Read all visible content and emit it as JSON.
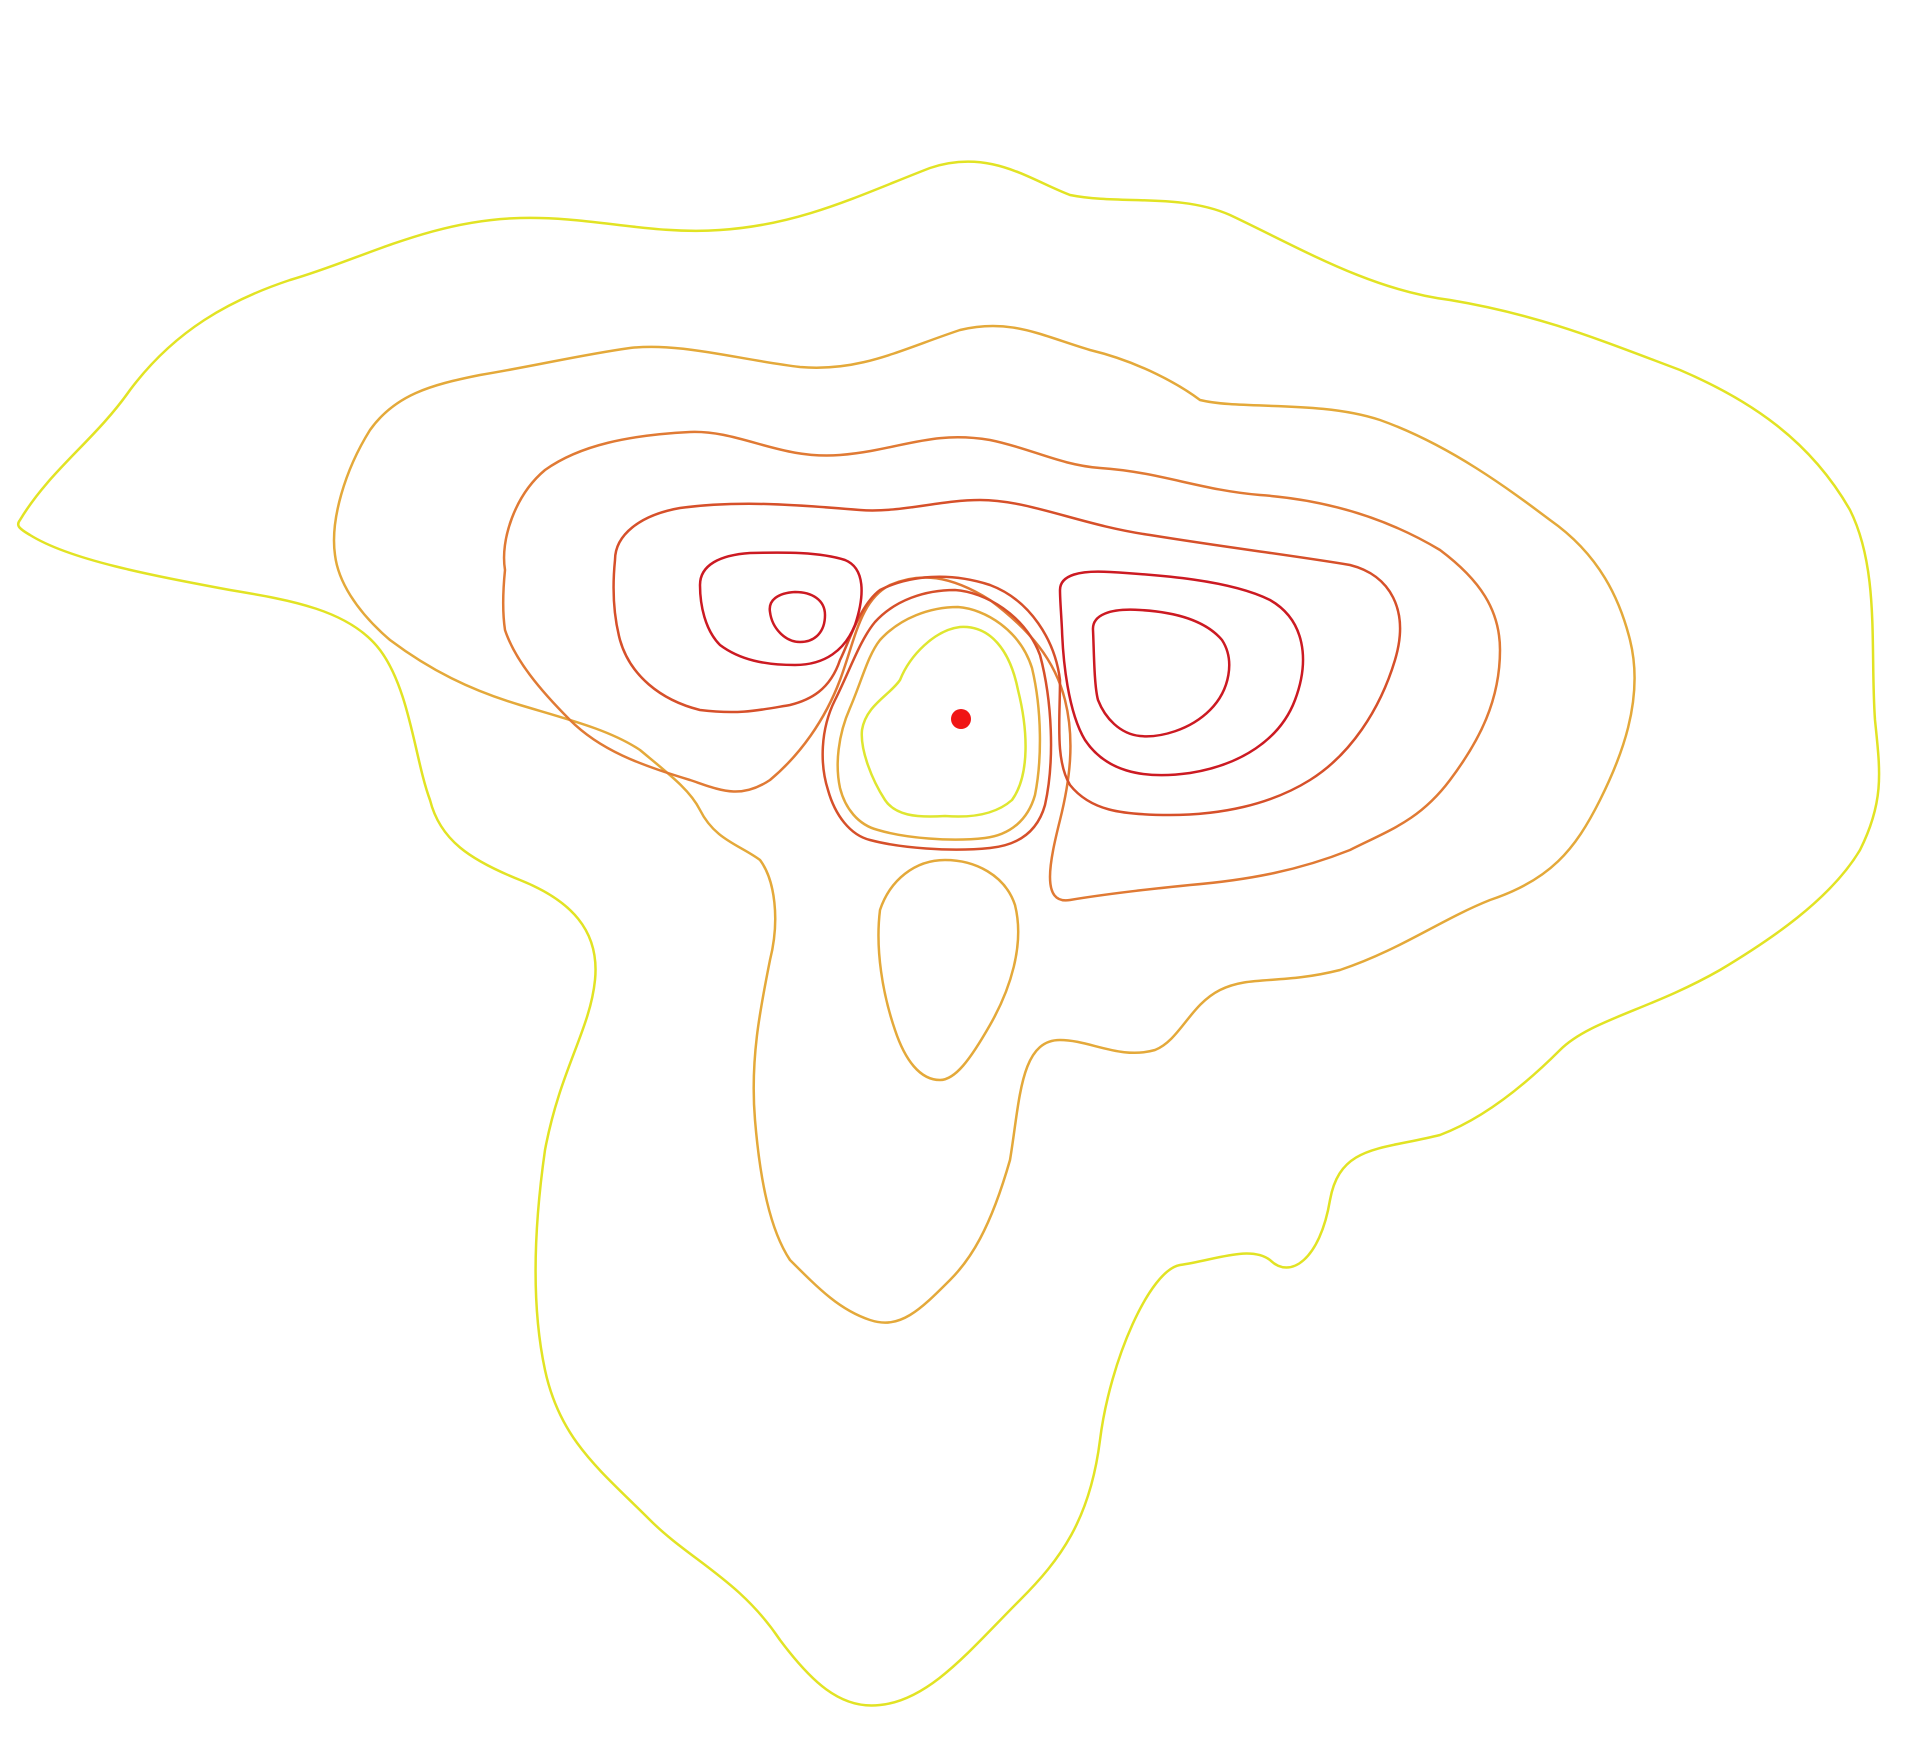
{
  "map": {
    "background": "#ffffff",
    "contour_colors": {
      "outer_yellow": "#e2e324",
      "light_orange": "#e4a93a",
      "orange": "#e07a34",
      "dark_orange": "#d6502a",
      "red": "#cc1a22",
      "inner_yellow": "#dfe630"
    },
    "center_marker": {
      "color": "#f01515",
      "shape": "dot"
    }
  }
}
